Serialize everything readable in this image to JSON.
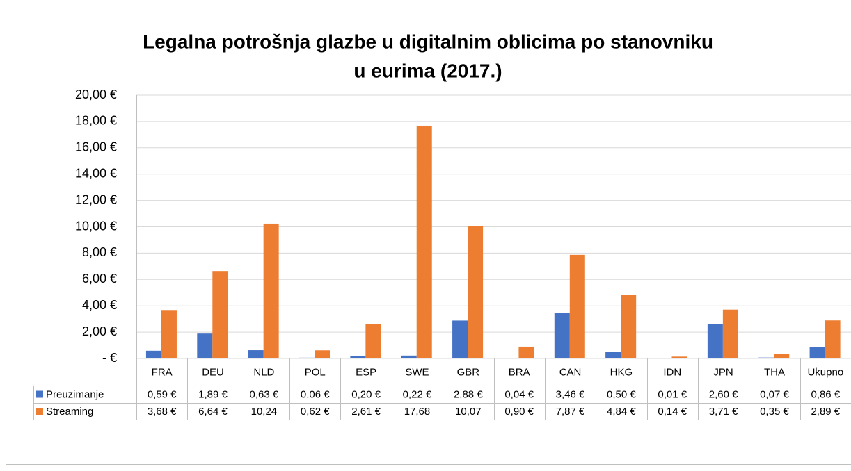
{
  "chart_data": {
    "type": "bar",
    "title": [
      "Legalna potrošnja glazbe u digitalnim oblicima po stanovniku",
      "u eurima (2017.)"
    ],
    "categories": [
      "FRA",
      "DEU",
      "NLD",
      "POL",
      "ESP",
      "SWE",
      "GBR",
      "BRA",
      "CAN",
      "HKG",
      "IDN",
      "JPN",
      "THA",
      "Ukupno"
    ],
    "series": [
      {
        "name": "Preuzimanje",
        "color": "#4472c4",
        "values": [
          0.59,
          1.89,
          0.63,
          0.06,
          0.2,
          0.22,
          2.88,
          0.04,
          3.46,
          0.5,
          0.01,
          2.6,
          0.07,
          0.86
        ],
        "value_labels": [
          "0,59 €",
          "1,89 €",
          "0,63 €",
          "0,06 €",
          "0,20 €",
          "0,22 €",
          "2,88 €",
          "0,04 €",
          "3,46 €",
          "0,50 €",
          "0,01 €",
          "2,60 €",
          "0,07 €",
          "0,86 €"
        ]
      },
      {
        "name": "Streaming",
        "color": "#ed7d31",
        "values": [
          3.68,
          6.64,
          10.24,
          0.62,
          2.61,
          17.68,
          10.07,
          0.9,
          7.87,
          4.84,
          0.14,
          3.71,
          0.35,
          2.89
        ],
        "value_labels": [
          "3,68 €",
          "6,64 €",
          "10,24",
          "0,62 €",
          "2,61 €",
          "17,68",
          "10,07",
          "0,90 €",
          "7,87 €",
          "4,84 €",
          "0,14 €",
          "3,71 €",
          "0,35 €",
          "2,89 €"
        ]
      }
    ],
    "ylim": [
      0,
      20
    ],
    "yticks": [
      {
        "value": 0,
        "label": "-  €"
      },
      {
        "value": 2,
        "label": "2,00 €"
      },
      {
        "value": 4,
        "label": "4,00 €"
      },
      {
        "value": 6,
        "label": "6,00 €"
      },
      {
        "value": 8,
        "label": "8,00 €"
      },
      {
        "value": 10,
        "label": "10,00 €"
      },
      {
        "value": 12,
        "label": "12,00 €"
      },
      {
        "value": 14,
        "label": "14,00 €"
      },
      {
        "value": 16,
        "label": "16,00 €"
      },
      {
        "value": 18,
        "label": "18,00 €"
      },
      {
        "value": 20,
        "label": "20,00 €"
      }
    ],
    "grid": true
  }
}
